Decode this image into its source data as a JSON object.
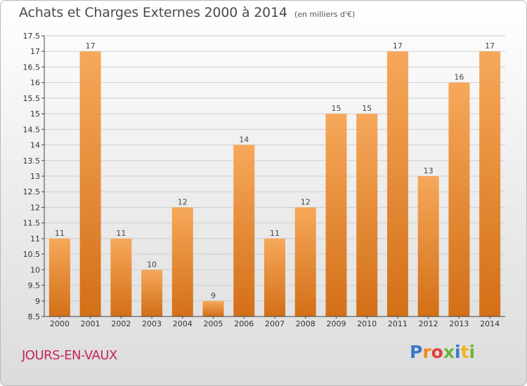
{
  "header": {
    "title": "Achats et Charges Externes 2000 à 2014",
    "unit": "(en milliers d'€)"
  },
  "footer": {
    "commune": "JOURS-EN-VAUX",
    "logo": {
      "letters": [
        "P",
        "r",
        "o",
        "x",
        "i",
        "t",
        "i"
      ],
      "colors": [
        "#3a78c8",
        "#f08a1c",
        "#e23d3d",
        "#6cb43c",
        "#3a78c8",
        "#f0b41c",
        "#6cb43c"
      ]
    }
  },
  "colors": {
    "bar_light": "#f6a85a",
    "bar_dark": "#d36f17",
    "axis": "#444444",
    "grid": "#cfcfcf"
  },
  "chart_data": {
    "type": "bar",
    "categories": [
      "2000",
      "2001",
      "2002",
      "2003",
      "2004",
      "2005",
      "2006",
      "2007",
      "2008",
      "2009",
      "2010",
      "2011",
      "2012",
      "2013",
      "2014"
    ],
    "values": [
      11,
      17,
      11,
      10,
      12,
      9,
      14,
      11,
      12,
      15,
      15,
      17,
      13,
      16,
      17
    ],
    "data_labels": [
      "11",
      "17",
      "11",
      "10",
      "12",
      "9",
      "14",
      "11",
      "12",
      "15",
      "15",
      "17",
      "13",
      "16",
      "17"
    ],
    "ylim": [
      8.5,
      17.5
    ],
    "yticks": [
      8.5,
      9,
      9.5,
      10,
      10.5,
      11,
      11.5,
      12,
      12.5,
      13,
      13.5,
      14,
      14.5,
      15,
      15.5,
      16,
      16.5,
      17,
      17.5
    ],
    "ytick_labels": [
      "8.5",
      "9",
      "9.5",
      "10",
      "10.5",
      "11",
      "11.5",
      "12",
      "12.5",
      "13",
      "13.5",
      "14",
      "14.5",
      "15",
      "15.5",
      "16",
      "16.5",
      "17",
      "17.5"
    ],
    "grid": true,
    "legend": "none"
  }
}
